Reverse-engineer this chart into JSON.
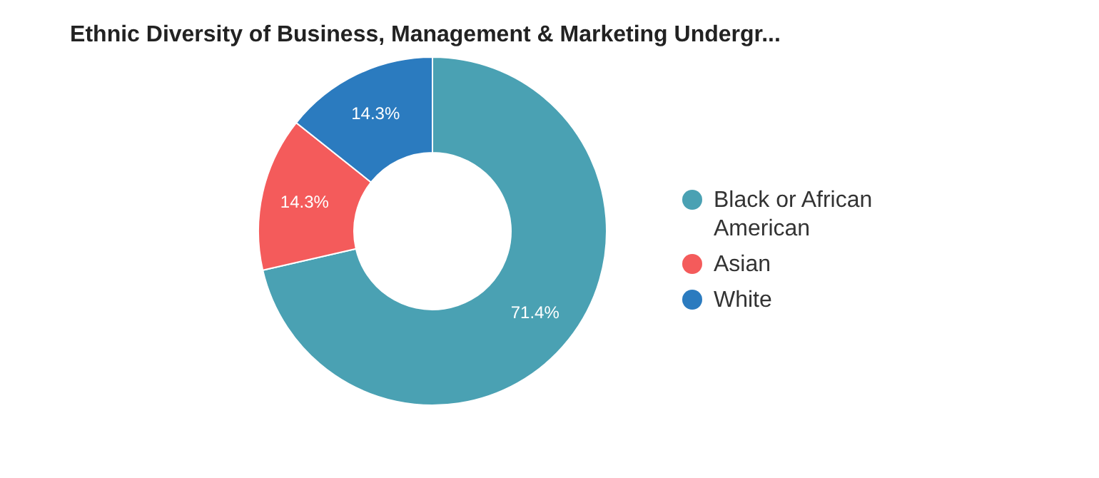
{
  "chart_data": {
    "type": "donut",
    "title": "Ethnic Diversity of Business, Management & Marketing Undergr...",
    "categories": [
      "Black or African American",
      "Asian",
      "White"
    ],
    "values": [
      71.4,
      14.3,
      14.3
    ],
    "colors": [
      "#4aa1b3",
      "#f45b5b",
      "#2b7bbf"
    ],
    "value_labels": [
      "71.4%",
      "14.3%",
      "14.3%"
    ],
    "legend": "right"
  }
}
